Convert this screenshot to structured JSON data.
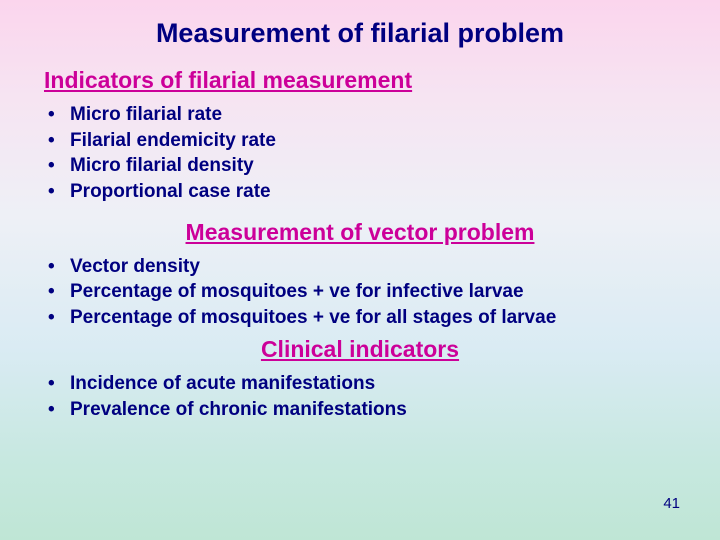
{
  "title": "Measurement of filarial problem",
  "section1": {
    "heading": "Indicators of filarial measurement",
    "items": [
      "Micro filarial rate",
      "Filarial endemicity rate",
      "Micro filarial density",
      "Proportional case rate"
    ]
  },
  "section2": {
    "heading": "Measurement of vector problem",
    "items": [
      "Vector density",
      "Percentage  of mosquitoes + ve for infective larvae",
      "Percentage of mosquitoes + ve for all stages of larvae"
    ]
  },
  "section3": {
    "heading": "Clinical indicators",
    "items": [
      "Incidence of acute manifestations",
      "Prevalence of chronic manifestations"
    ]
  },
  "pageNumber": "41",
  "colors": {
    "headingText": "#cc0099",
    "bodyText": "#000080",
    "bgTop": "#fbd5ed",
    "bgBottom": "#bfe6d5"
  },
  "fontSizes": {
    "title": 27,
    "subtitle": 23,
    "bullet": 19,
    "pageNum": 15
  }
}
